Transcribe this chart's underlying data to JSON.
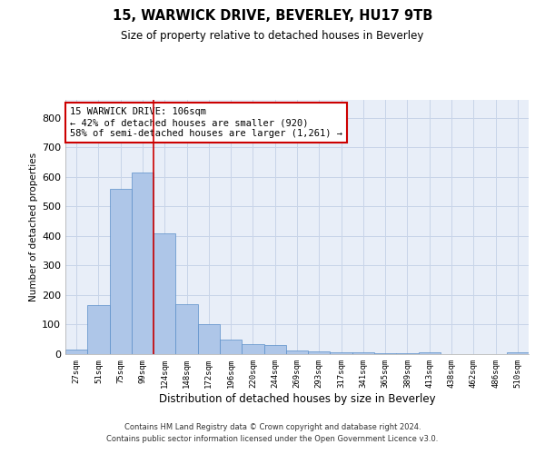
{
  "title1": "15, WARWICK DRIVE, BEVERLEY, HU17 9TB",
  "title2": "Size of property relative to detached houses in Beverley",
  "xlabel": "Distribution of detached houses by size in Beverley",
  "ylabel": "Number of detached properties",
  "categories": [
    "27sqm",
    "51sqm",
    "75sqm",
    "99sqm",
    "124sqm",
    "148sqm",
    "172sqm",
    "196sqm",
    "220sqm",
    "244sqm",
    "269sqm",
    "293sqm",
    "317sqm",
    "341sqm",
    "365sqm",
    "389sqm",
    "413sqm",
    "438sqm",
    "462sqm",
    "486sqm",
    "510sqm"
  ],
  "values": [
    15,
    165,
    560,
    615,
    410,
    170,
    100,
    50,
    35,
    30,
    12,
    10,
    7,
    5,
    2,
    2,
    5,
    0,
    0,
    0,
    5
  ],
  "bar_color": "#aec6e8",
  "bar_edge_color": "#5b8fc9",
  "grid_color": "#c8d4e8",
  "background_color": "#e8eef8",
  "vline_x_index": 3.5,
  "vline_color": "#cc0000",
  "annotation_text": "15 WARWICK DRIVE: 106sqm\n← 42% of detached houses are smaller (920)\n58% of semi-detached houses are larger (1,261) →",
  "annotation_box_color": "#ffffff",
  "annotation_box_edge": "#cc0000",
  "footer1": "Contains HM Land Registry data © Crown copyright and database right 2024.",
  "footer2": "Contains public sector information licensed under the Open Government Licence v3.0.",
  "ylim": [
    0,
    860
  ],
  "yticks": [
    0,
    100,
    200,
    300,
    400,
    500,
    600,
    700,
    800
  ]
}
